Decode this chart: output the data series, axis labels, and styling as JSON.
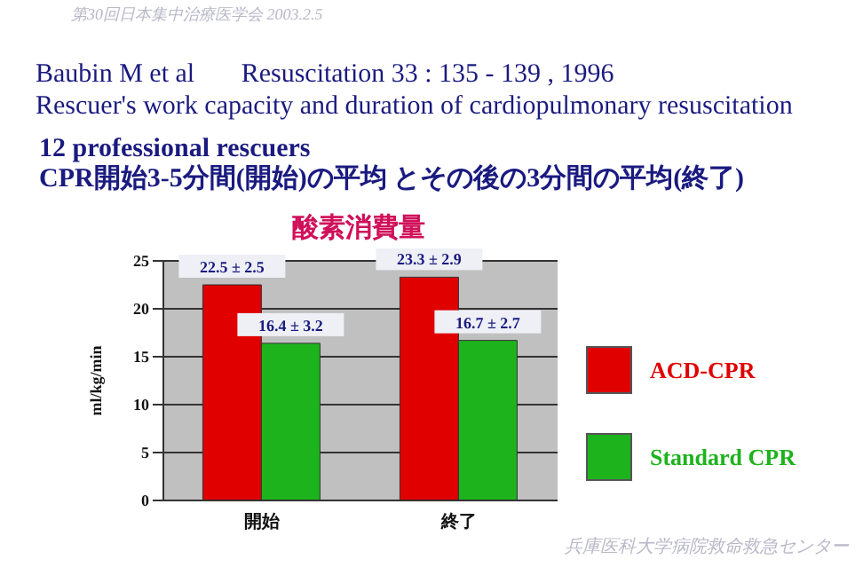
{
  "chart_data": {
    "type": "bar",
    "title": "酸素消費量",
    "ylabel": "ml/kg/min",
    "annotations": [
      "第30回日本集中治療医学会 2003.2.5",
      "Baubin M et al       Resuscitation 33 : 135 - 139 , 1996",
      "Rescuer's work capacity and duration of cardiopulmonary resuscitation",
      "12 professional rescuers",
      "CPR開始3-5分間(開始)の平均 とその後の3分間の平均(終了)",
      "兵庫医科大学病院救命救急センター"
    ],
    "categories": [
      "開始",
      "終了"
    ],
    "series": [
      {
        "name": "ACD-CPR",
        "color": "#e00000",
        "values": [
          22.5,
          23.3
        ],
        "value_labels": [
          "22.5 ± 2.5",
          "23.3 ± 2.9"
        ]
      },
      {
        "name": "Standard CPR",
        "color": "#1db31d",
        "values": [
          16.4,
          16.7
        ],
        "value_labels": [
          "16.4 ± 3.2",
          "16.7 ± 2.7"
        ]
      }
    ],
    "ylim": [
      0,
      25
    ],
    "yticks": [
      0,
      5,
      10,
      15,
      20,
      25
    ],
    "grid": "y",
    "legend": "right"
  }
}
